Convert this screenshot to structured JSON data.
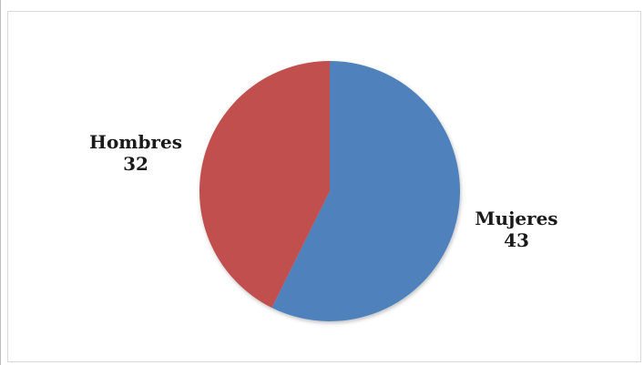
{
  "chart_data": {
    "type": "pie",
    "title": "",
    "slices": [
      {
        "label": "Mujeres",
        "value": 43,
        "color": "#4f81bd"
      },
      {
        "label": "Hombres",
        "value": 32,
        "color": "#c0504d"
      }
    ],
    "data_labels": {
      "show_label": true,
      "show_value": true
    },
    "legend": "none"
  }
}
